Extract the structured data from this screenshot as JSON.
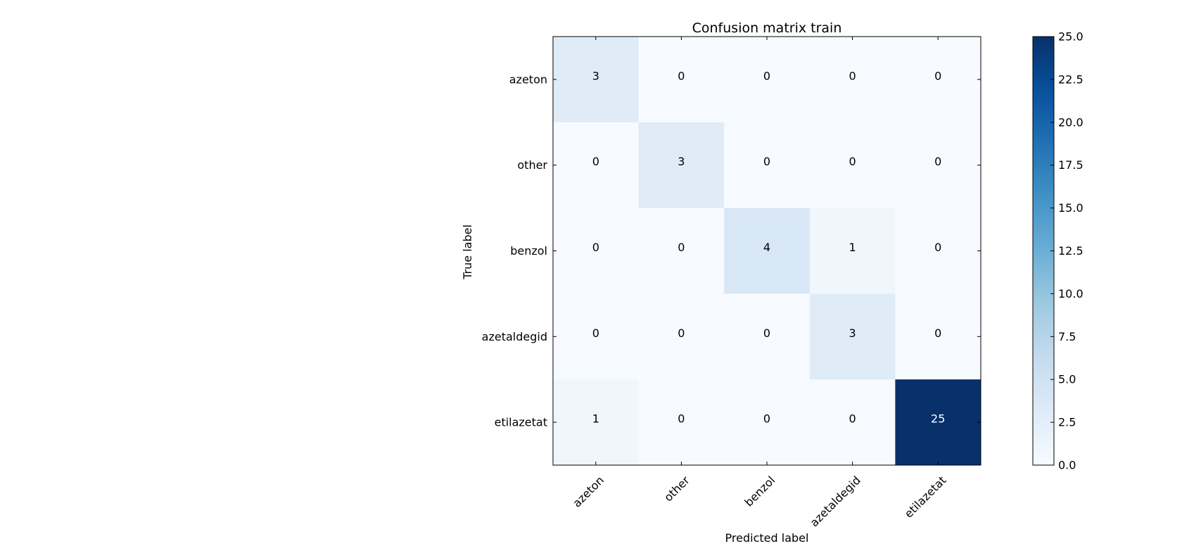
{
  "chart_data": {
    "type": "heatmap",
    "title": "Confusion matrix train",
    "xlabel": "Predicted label",
    "ylabel": "True label",
    "x_categories": [
      "azeton",
      "other",
      "benzol",
      "azetaldegid",
      "etilazetat"
    ],
    "y_categories": [
      "azeton",
      "other",
      "benzol",
      "azetaldegid",
      "etilazetat"
    ],
    "matrix": [
      [
        3,
        0,
        0,
        0,
        0
      ],
      [
        0,
        3,
        0,
        0,
        0
      ],
      [
        0,
        0,
        4,
        1,
        0
      ],
      [
        0,
        0,
        0,
        3,
        0
      ],
      [
        1,
        0,
        0,
        0,
        25
      ]
    ],
    "colormap": "Blues",
    "colorbar": {
      "min": 0,
      "max": 25,
      "ticks": [
        "0.0",
        "2.5",
        "5.0",
        "7.5",
        "10.0",
        "12.5",
        "15.0",
        "17.5",
        "20.0",
        "22.5",
        "25.0"
      ]
    }
  }
}
